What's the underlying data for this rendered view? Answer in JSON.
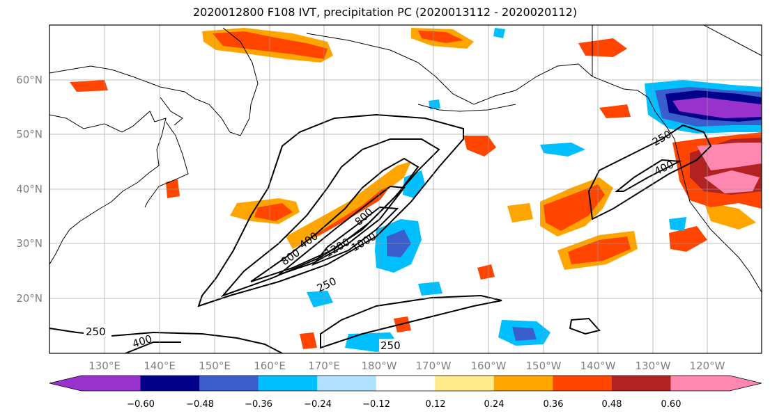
{
  "title": "2020012800 F108 IVT, precipitation PC (2020013112 - 2020020112)",
  "map": {
    "projection": "lat-lon",
    "lon_ticks": [
      "130°E",
      "140°E",
      "150°E",
      "160°E",
      "170°E",
      "180°W",
      "170°W",
      "160°W",
      "150°W",
      "140°W",
      "130°W",
      "120°W"
    ],
    "lat_ticks": [
      "60°N",
      "50°N",
      "40°N",
      "30°N",
      "20°N"
    ],
    "ivt_contour_labels": [
      "250",
      "400",
      "600",
      "800",
      "1200",
      "1000",
      "250",
      "400",
      "250",
      "400"
    ],
    "grid": true
  },
  "colorbar": {
    "ticks": [
      "−0.60",
      "−0.48",
      "−0.36",
      "−0.24",
      "−0.12",
      "0.12",
      "0.24",
      "0.36",
      "0.48",
      "0.60"
    ],
    "colors": [
      "#9932cc",
      "#00008b",
      "#3a5fcd",
      "#00bfff",
      "#b0e2ff",
      "#ffffff",
      "#ffeb8a",
      "#ffa500",
      "#ff4500",
      "#b22222",
      "#ff88b0"
    ],
    "extend": "both"
  }
}
